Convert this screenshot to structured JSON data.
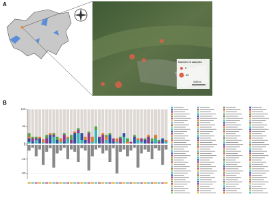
{
  "panel_a": {
    "label": "A",
    "legend_title": "Number of samples",
    "legend_items": [
      "5",
      "10"
    ],
    "scale": "1000 m"
  },
  "chart_data": {
    "type": "bar",
    "panel_label": "B",
    "stacked": true,
    "categories": [
      null,
      null,
      null,
      null,
      null,
      null,
      null,
      null,
      null,
      null,
      null,
      null,
      null,
      null,
      null,
      null,
      null,
      null,
      null,
      null,
      null,
      null,
      null,
      null,
      null,
      null,
      null,
      null,
      null,
      null,
      null,
      null,
      null,
      null,
      null,
      null,
      null,
      null,
      null,
      null
    ],
    "ylim": [
      0,
      100
    ],
    "yticks": [
      0,
      50,
      100
    ],
    "y2lim": [
      -60,
      0
    ],
    "y2ticks": [
      -50,
      -25,
      0
    ],
    "series": [
      {
        "color": "#3cb4b4",
        "values": [
          5,
          0,
          10,
          0,
          3,
          0,
          0,
          20,
          0,
          5,
          0,
          15,
          0,
          0,
          30,
          10,
          0,
          0,
          5,
          40,
          0,
          0,
          10,
          0,
          0,
          5,
          0,
          20,
          0,
          0,
          0,
          10,
          5,
          0,
          0,
          0,
          15,
          0,
          0,
          5
        ]
      },
      {
        "color": "#2d4fa0",
        "values": [
          10,
          5,
          0,
          15,
          0,
          0,
          25,
          0,
          10,
          0,
          5,
          0,
          0,
          30,
          0,
          20,
          10,
          0,
          0,
          0,
          15,
          0,
          0,
          25,
          5,
          0,
          0,
          10,
          0,
          0,
          20,
          0,
          0,
          10,
          0,
          5,
          0,
          0,
          15,
          0
        ]
      },
      {
        "color": "#8e3a8e",
        "values": [
          0,
          10,
          5,
          0,
          0,
          15,
          0,
          5,
          0,
          0,
          20,
          0,
          10,
          0,
          10,
          0,
          0,
          30,
          0,
          0,
          5,
          25,
          0,
          0,
          10,
          0,
          15,
          0,
          0,
          5,
          0,
          0,
          10,
          0,
          20,
          0,
          0,
          5,
          0,
          0
        ]
      },
      {
        "color": "#e07b30",
        "values": [
          5,
          0,
          0,
          5,
          10,
          0,
          5,
          0,
          0,
          10,
          0,
          5,
          0,
          5,
          0,
          0,
          10,
          0,
          15,
          0,
          0,
          5,
          10,
          0,
          0,
          10,
          0,
          0,
          5,
          0,
          0,
          5,
          0,
          0,
          5,
          0,
          10,
          0,
          0,
          5
        ]
      },
      {
        "color": "#5aa04a",
        "values": [
          10,
          5,
          5,
          0,
          0,
          10,
          0,
          5,
          10,
          0,
          5,
          0,
          15,
          0,
          5,
          0,
          0,
          5,
          0,
          10,
          0,
          0,
          5,
          5,
          0,
          0,
          5,
          0,
          10,
          0,
          5,
          0,
          0,
          5,
          0,
          10,
          0,
          5,
          0,
          0
        ]
      },
      {
        "color": "#ddd8d4",
        "values": [
          70,
          80,
          80,
          80,
          87,
          75,
          70,
          70,
          80,
          85,
          70,
          80,
          75,
          65,
          55,
          70,
          80,
          65,
          80,
          50,
          80,
          70,
          75,
          70,
          85,
          85,
          80,
          70,
          85,
          95,
          75,
          85,
          85,
          85,
          75,
          85,
          75,
          90,
          85,
          90
        ]
      },
      {
        "color": "#888888",
        "axis": "y2",
        "values": [
          -10,
          -5,
          -20,
          -8,
          -35,
          -12,
          -6,
          -40,
          -15,
          -10,
          -5,
          -25,
          -8,
          -12,
          -30,
          -6,
          -10,
          -45,
          -20,
          -8,
          -5,
          -15,
          -10,
          -30,
          -6,
          -50,
          -12,
          -8,
          -20,
          -10,
          -5,
          -40,
          -15,
          -8,
          -12,
          -25,
          -6,
          -10,
          -35,
          -8
        ]
      }
    ]
  }
}
